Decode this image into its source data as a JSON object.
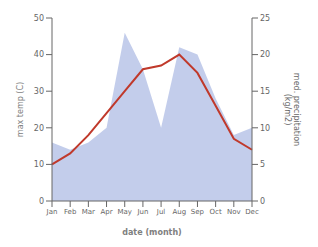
{
  "chart_data": {
    "type": "line",
    "categories": [
      "Jan",
      "Feb",
      "Mar",
      "Apr",
      "May",
      "Jun",
      "Jul",
      "Aug",
      "Sep",
      "Oct",
      "Nov",
      "Dec"
    ],
    "series": [
      {
        "type": "area",
        "axis": "y2",
        "color": "#b8c4e8",
        "values": [
          8,
          7,
          8,
          10,
          23,
          18,
          10,
          21,
          20,
          14,
          9,
          10
        ]
      },
      {
        "type": "line",
        "color": "#c0392b",
        "values": [
          10,
          13,
          18,
          24,
          30,
          36,
          37,
          40,
          35,
          26,
          17,
          14
        ]
      }
    ],
    "xlabel": "date (month)",
    "ylabel": "max temp (C)",
    "y2label": "med. precipitation\n(kg/m2)",
    "ylim": [
      0,
      50
    ],
    "yticks": [
      0,
      10,
      20,
      30,
      40,
      50
    ],
    "y2lim": [
      0,
      25
    ],
    "y2ticks": [
      0,
      5,
      10,
      15,
      20,
      25
    ],
    "grid": false
  }
}
